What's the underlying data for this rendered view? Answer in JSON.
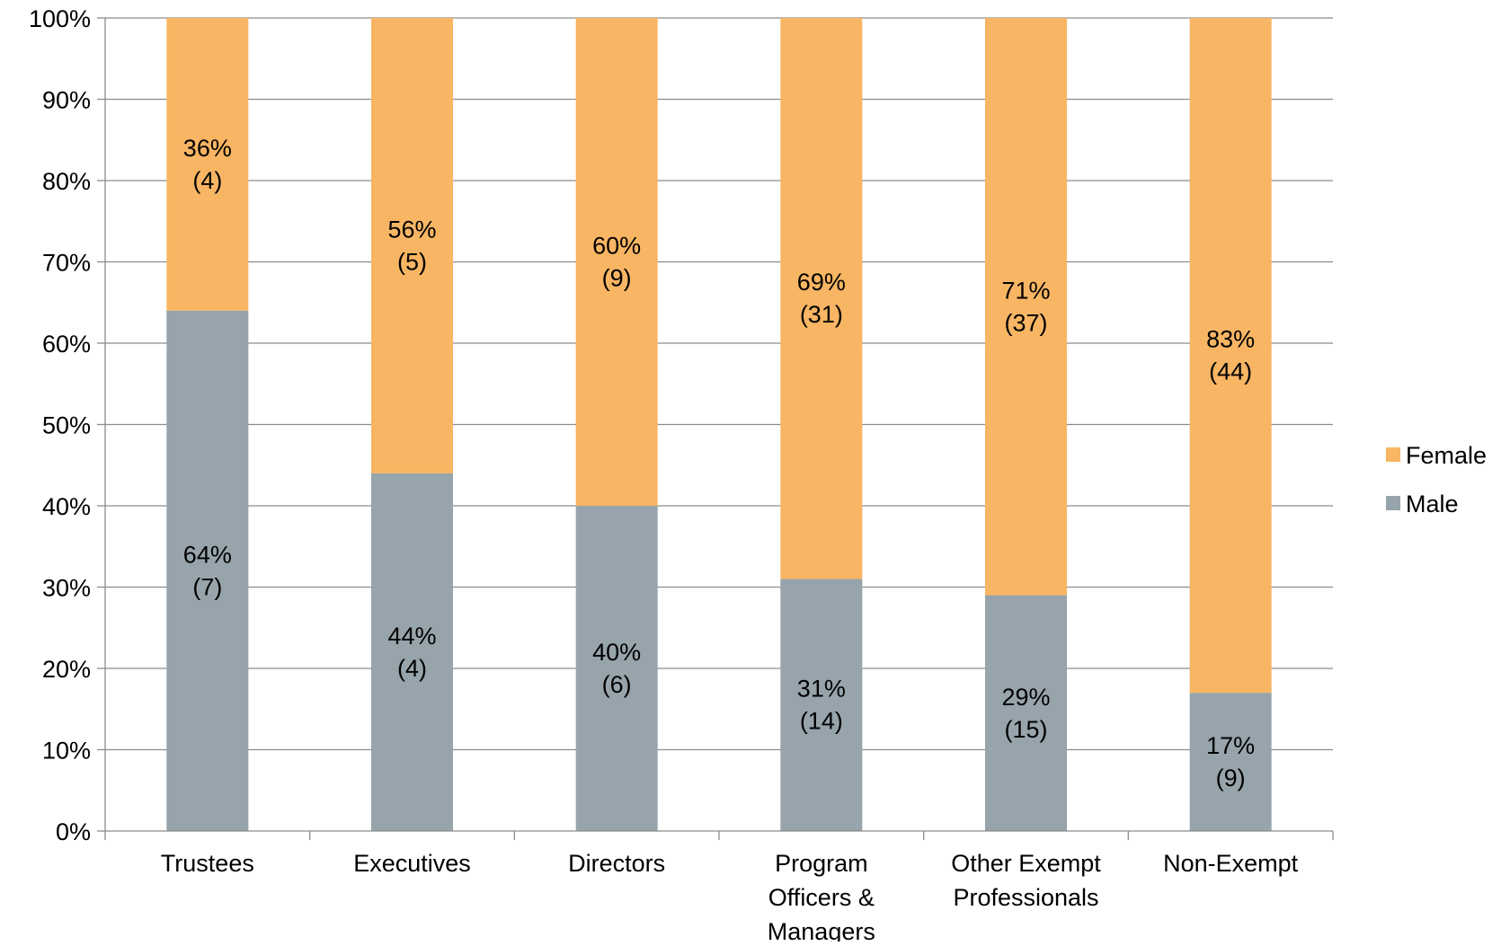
{
  "chart_data": {
    "type": "bar",
    "stacked": true,
    "normalized": true,
    "categories": [
      [
        "Trustees"
      ],
      [
        "Executives"
      ],
      [
        "Directors"
      ],
      [
        "Program",
        "Officers &",
        "Managers"
      ],
      [
        "Other Exempt",
        "Professionals"
      ],
      [
        "Non-Exempt"
      ]
    ],
    "series": [
      {
        "name": "Male",
        "color": "#97a4ab",
        "values": [
          64,
          44,
          40,
          31,
          29,
          17
        ],
        "labels": [
          [
            "64%",
            "(7)"
          ],
          [
            "44%",
            "(4)"
          ],
          [
            "40%",
            "(6)"
          ],
          [
            "31%",
            "(14)"
          ],
          [
            "29%",
            "(15)"
          ],
          [
            "17%",
            "(9)"
          ]
        ]
      },
      {
        "name": "Female",
        "color": "#f8b563",
        "values": [
          36,
          56,
          60,
          69,
          71,
          83
        ],
        "labels": [
          [
            "36%",
            "(4)"
          ],
          [
            "56%",
            "(5)"
          ],
          [
            "60%",
            "(9)"
          ],
          [
            "69%",
            "(31)"
          ],
          [
            "71%",
            "(37)"
          ],
          [
            "83%",
            "(44)"
          ]
        ]
      }
    ],
    "ylim": [
      0,
      100
    ],
    "yticks": [
      "0%",
      "10%",
      "20%",
      "30%",
      "40%",
      "50%",
      "60%",
      "70%",
      "80%",
      "90%",
      "100%"
    ],
    "grid": true,
    "legend": {
      "position": "right",
      "entries": [
        "Female",
        "Male"
      ]
    }
  }
}
